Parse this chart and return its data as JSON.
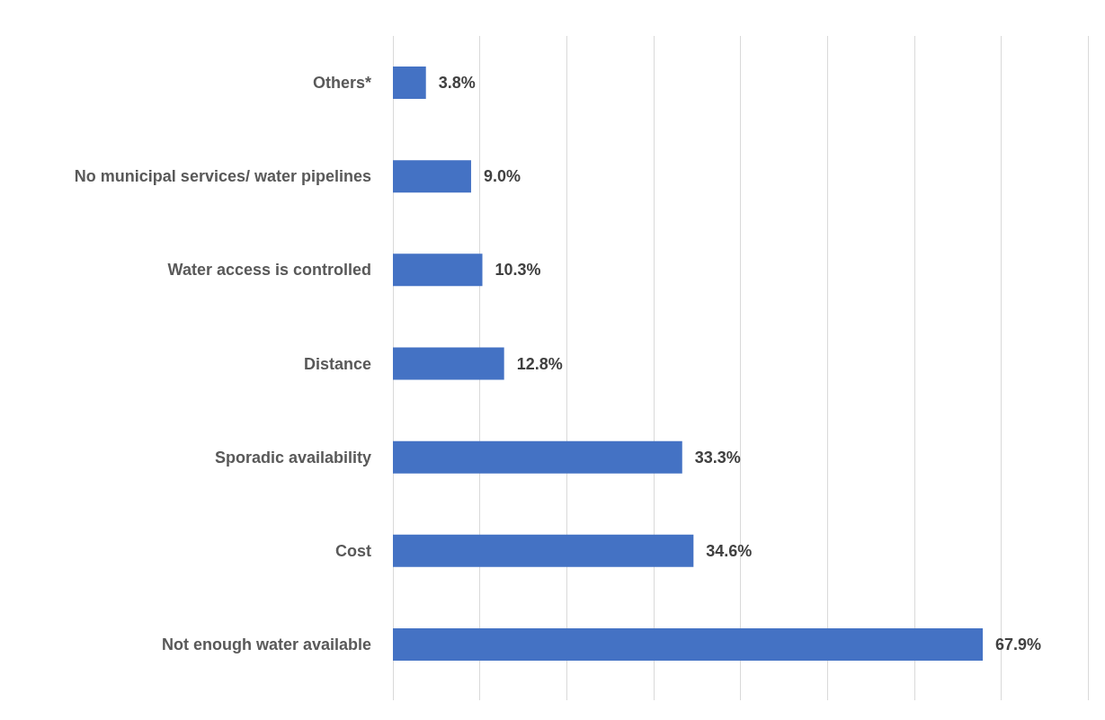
{
  "chart_data": {
    "type": "bar",
    "orientation": "horizontal",
    "categories": [
      "Others*",
      "No municipal services/ water pipelines",
      "Water access is controlled",
      "Distance",
      "Sporadic availability",
      "Cost",
      "Not enough water available"
    ],
    "values": [
      3.8,
      9.0,
      10.3,
      12.8,
      33.3,
      34.6,
      67.9
    ],
    "value_labels": [
      "3.8%",
      "9.0%",
      "10.3%",
      "12.8%",
      "33.3%",
      "34.6%",
      "67.9%"
    ],
    "color": "#4472c4",
    "xlim": [
      0,
      80
    ],
    "xticks": [
      {
        "value": 0,
        "label": null
      },
      {
        "value": 10,
        "label": null
      },
      {
        "value": 20,
        "label": null
      },
      {
        "value": 30,
        "label": null
      },
      {
        "value": 40,
        "label": null
      },
      {
        "value": 50,
        "label": null
      },
      {
        "value": 60,
        "label": null
      },
      {
        "value": 70,
        "label": null
      },
      {
        "value": 80,
        "label": null
      }
    ],
    "tick_labels": "y",
    "grid": "x"
  }
}
